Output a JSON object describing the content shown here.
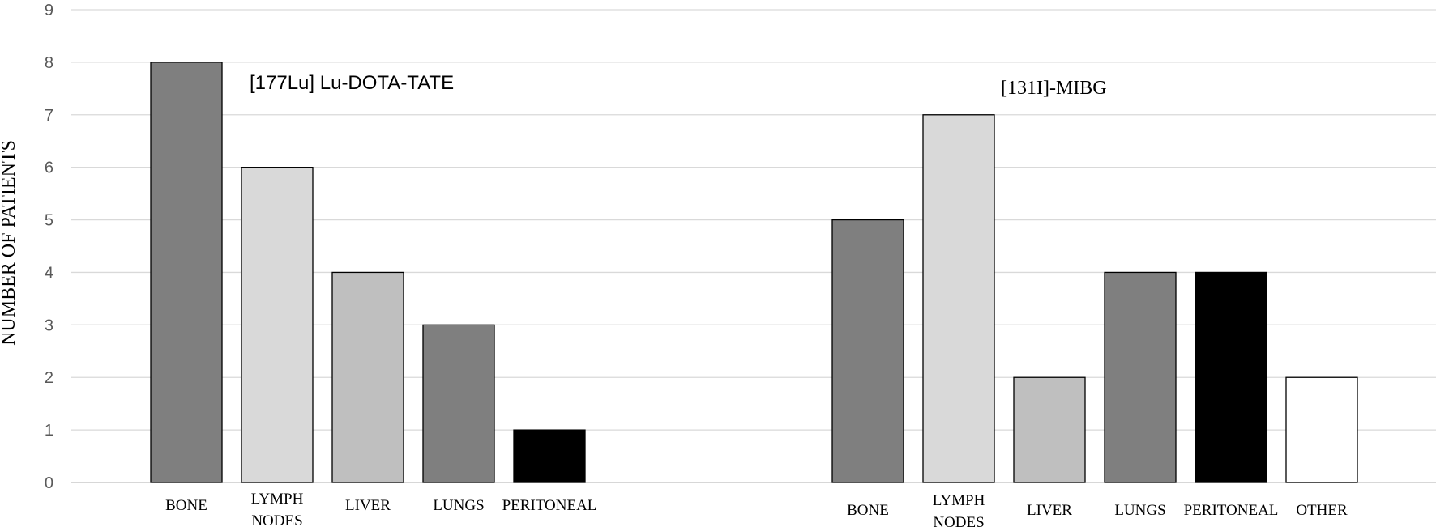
{
  "chart_data": {
    "type": "bar",
    "ylabel": "NUMBER OF PATIENTS",
    "ylim": [
      0,
      9
    ],
    "yticks": [
      "0",
      "1",
      "2",
      "3",
      "4",
      "5",
      "6",
      "7",
      "8",
      "9"
    ],
    "grid": true,
    "groups": [
      {
        "label": "[177Lu] Lu-DOTA-TATE",
        "categories": [
          "BONE",
          "LYMPH NODES",
          "LIVER",
          "LUNGS",
          "PERITONEAL"
        ],
        "values": [
          8,
          6,
          4,
          3,
          1
        ],
        "colors": [
          "#7f7f7f",
          "#d9d9d9",
          "#bfbfbf",
          "#7f7f7f",
          "#000000"
        ]
      },
      {
        "label": "[131I]-MIBG",
        "categories": [
          "BONE",
          "LYMPH NODES",
          "LIVER",
          "LUNGS",
          "PERITONEAL",
          "OTHER"
        ],
        "values": [
          5,
          7,
          2,
          4,
          4,
          2
        ],
        "colors": [
          "#7f7f7f",
          "#d9d9d9",
          "#bfbfbf",
          "#7f7f7f",
          "#000000",
          "#ffffff"
        ]
      }
    ]
  }
}
